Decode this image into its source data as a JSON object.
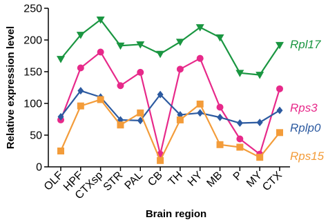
{
  "chart_data": {
    "type": "line",
    "xlabel": "Brain region",
    "ylabel": "Relative expression level",
    "ylim": [
      0,
      250
    ],
    "yticks": [
      0,
      50,
      100,
      150,
      200,
      250
    ],
    "grid": false,
    "legend": "direct labels at right end of each line",
    "categories": [
      "OLF",
      "HPF",
      "CTXsp",
      "STR",
      "PAL",
      "CB",
      "TH",
      "HY",
      "MB",
      "P",
      "MY",
      "CTX"
    ],
    "series": [
      {
        "name": "Rpl17",
        "color": "#1a9641",
        "marker": "triangle-down",
        "values": [
          170,
          208,
          232,
          191,
          193,
          178,
          197,
          220,
          204,
          148,
          145,
          192
        ]
      },
      {
        "name": "Rps3",
        "color": "#e7298a",
        "marker": "circle",
        "values": [
          74,
          156,
          181,
          128,
          149,
          20,
          154,
          171,
          94,
          44,
          20,
          123
        ]
      },
      {
        "name": "Rplp0",
        "color": "#2c5aa0",
        "marker": "diamond",
        "values": [
          79,
          120,
          110,
          74,
          73,
          114,
          82,
          85,
          78,
          69,
          70,
          89
        ]
      },
      {
        "name": "Rps15",
        "color": "#f39c3a",
        "marker": "square",
        "values": [
          25,
          96,
          106,
          66,
          85,
          10,
          74,
          99,
          35,
          31,
          15,
          54
        ]
      }
    ]
  }
}
